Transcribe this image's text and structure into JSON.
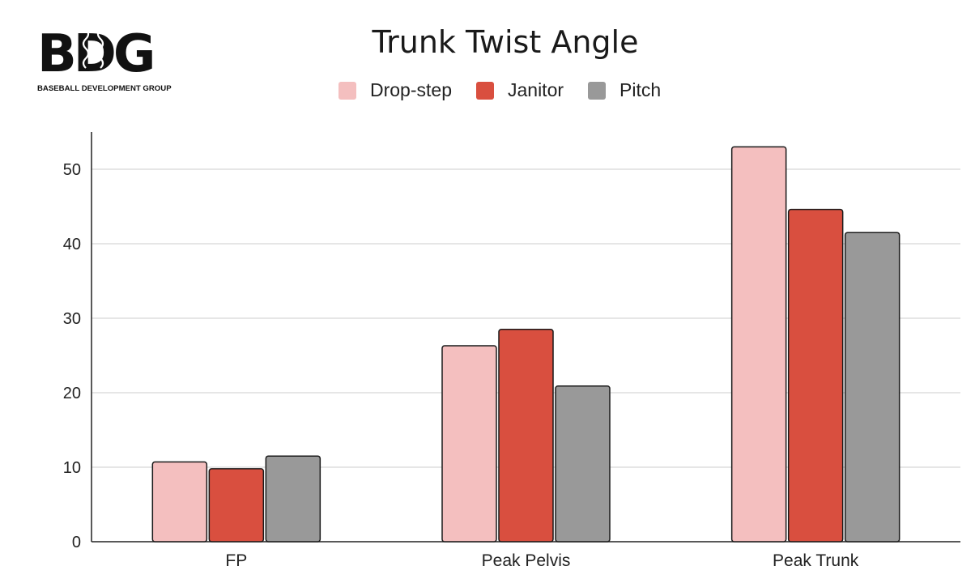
{
  "logo": {
    "mark": "BDG",
    "text": "BASEBALL DEVELOPMENT GROUP"
  },
  "chart_data": {
    "type": "bar",
    "title": "Trunk Twist Angle",
    "xlabel": "",
    "ylabel": "",
    "categories": [
      "FP",
      "Peak Pelvis",
      "Peak Trunk"
    ],
    "series": [
      {
        "name": "Drop-step",
        "color": "#f4bfbf",
        "values": [
          10.7,
          26.3,
          53.0
        ]
      },
      {
        "name": "Janitor",
        "color": "#d94f3f",
        "values": [
          9.8,
          28.5,
          44.6
        ]
      },
      {
        "name": "Pitch",
        "color": "#999999",
        "values": [
          11.5,
          20.9,
          41.5
        ]
      }
    ],
    "ylim": [
      0,
      55
    ],
    "yticks": [
      0,
      10,
      20,
      30,
      40,
      50
    ],
    "grid": true,
    "legend_position": "top"
  }
}
